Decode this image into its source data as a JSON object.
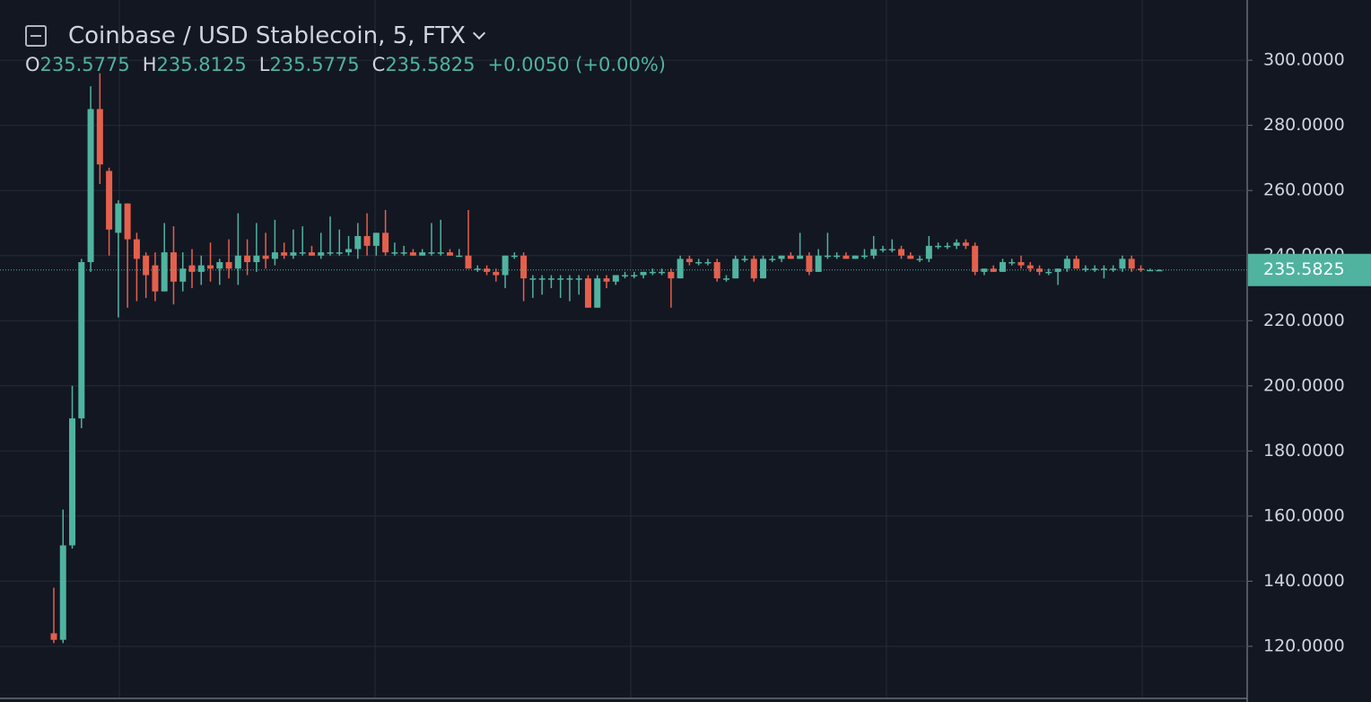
{
  "chart_data": {
    "type": "candlestick",
    "title": "Coinbase / USD Stablecoin, 5, FTX",
    "ohlc_letters": [
      "O",
      "H",
      "L",
      "C"
    ],
    "change_label": "+0.0050 (+0.00%)",
    "up_color": "#4fb3a0",
    "down_color": "#e4604d",
    "grid": true,
    "ylim": [
      104,
      318.5
    ],
    "yticks": [
      {
        "value": 120,
        "label": "120.0000"
      },
      {
        "value": 140,
        "label": "140.0000"
      },
      {
        "value": 160,
        "label": "160.0000"
      },
      {
        "value": 180,
        "label": "180.0000"
      },
      {
        "value": 200,
        "label": "200.0000"
      },
      {
        "value": 220,
        "label": "220.0000"
      },
      {
        "value": 240,
        "label": "240.0000"
      },
      {
        "value": 260,
        "label": "260.0000"
      },
      {
        "value": 280,
        "label": "280.0000"
      },
      {
        "value": 300,
        "label": "300.0000"
      }
    ],
    "open": [
      124,
      122,
      151,
      190,
      238,
      285,
      266,
      247,
      256,
      245,
      240,
      237,
      229,
      241,
      232,
      237,
      235,
      237,
      236,
      238,
      236,
      240,
      238,
      240,
      239,
      241,
      240,
      241,
      241,
      240,
      241,
      241,
      241,
      242,
      246,
      243,
      247,
      241,
      241,
      241,
      240,
      241,
      241,
      241,
      240,
      240,
      236,
      236,
      235,
      234,
      240,
      240,
      233,
      233,
      233,
      233,
      233,
      233,
      233,
      224,
      233,
      232,
      234,
      234,
      234,
      235,
      235,
      235,
      233,
      239,
      238,
      238,
      238,
      233,
      233,
      239,
      239,
      233,
      239,
      239,
      240,
      239,
      240,
      235,
      240,
      240,
      240,
      239,
      240,
      240,
      242,
      242,
      242,
      240,
      239,
      239,
      243,
      243,
      243,
      244,
      243,
      235,
      236,
      235,
      238,
      238,
      237,
      236,
      235,
      235,
      236,
      239,
      236,
      236,
      236,
      236,
      236,
      239,
      236,
      235.6,
      235.5775
    ],
    "high": [
      138,
      162,
      200,
      239,
      292,
      296,
      267,
      257,
      256,
      247,
      241,
      241,
      250,
      249,
      241,
      242,
      240,
      244,
      239,
      245,
      253,
      245,
      250,
      247,
      251,
      244,
      248,
      249,
      243,
      247,
      252,
      248,
      246,
      250,
      253,
      247,
      254,
      244,
      243,
      242,
      242,
      250,
      251,
      242,
      242,
      254,
      237,
      237,
      236,
      240,
      241,
      241,
      234,
      234,
      234,
      234,
      234,
      234,
      234,
      234,
      234,
      234,
      235,
      235,
      235,
      236,
      236,
      236,
      240,
      240,
      239,
      239,
      239,
      234,
      240,
      240,
      240,
      240,
      240,
      240,
      241,
      247,
      241,
      242,
      247,
      241,
      241,
      240,
      242,
      246,
      243,
      245,
      243,
      241,
      240,
      246,
      244,
      244,
      245,
      245,
      244,
      236,
      237,
      239,
      239,
      240,
      238,
      237,
      236,
      236,
      240,
      240,
      237,
      237,
      237,
      237,
      240,
      240,
      237,
      236,
      235.8125
    ],
    "low": [
      121,
      121,
      150,
      187,
      235,
      262,
      240,
      221,
      224,
      226,
      227,
      226,
      229,
      225,
      229,
      230,
      231,
      232,
      231,
      233,
      231,
      234,
      235,
      236,
      237,
      239,
      239,
      240,
      240,
      239,
      240,
      240,
      240,
      239,
      240,
      240,
      240,
      240,
      240,
      240,
      240,
      240,
      240,
      240,
      240,
      236,
      235,
      234,
      232,
      230,
      239,
      226,
      227,
      228,
      230,
      227,
      226,
      228,
      224,
      224,
      230,
      231,
      233,
      233,
      233,
      234,
      234,
      224,
      233,
      237,
      237,
      237,
      232,
      232,
      233,
      238,
      232,
      233,
      238,
      238,
      239,
      239,
      234,
      235,
      239,
      239,
      239,
      239,
      239,
      239,
      241,
      241,
      239,
      239,
      238,
      238,
      242,
      242,
      242,
      242,
      234,
      234,
      235,
      235,
      237,
      236,
      235,
      234,
      234,
      231,
      235,
      236,
      235,
      235,
      233,
      235,
      235,
      235,
      235,
      235.5,
      235.5775
    ],
    "close": [
      122,
      151,
      190,
      238,
      285,
      268,
      248,
      256,
      245,
      239,
      234,
      229,
      241,
      232,
      236,
      235,
      237,
      236,
      238,
      236,
      240,
      238,
      240,
      239,
      241,
      240,
      241,
      241,
      240,
      241,
      241,
      241,
      242,
      246,
      243,
      247,
      241,
      241,
      241,
      240,
      241,
      241,
      241,
      240,
      240,
      236,
      236,
      235,
      234,
      240,
      240,
      233,
      233,
      233,
      233,
      233,
      233,
      233,
      224,
      233,
      232,
      234,
      234,
      234,
      235,
      235,
      235,
      233,
      239,
      238,
      238,
      238,
      233,
      233,
      239,
      239,
      233,
      239,
      239,
      240,
      239,
      240,
      235,
      240,
      240,
      240,
      239,
      240,
      240,
      242,
      242,
      242,
      240,
      239,
      239,
      243,
      243,
      243,
      244,
      243,
      235,
      236,
      235,
      238,
      238,
      237,
      236,
      235,
      235,
      236,
      239,
      236,
      236,
      236,
      236,
      236,
      239,
      236,
      235.6,
      235.6,
      235.5825
    ]
  }
}
